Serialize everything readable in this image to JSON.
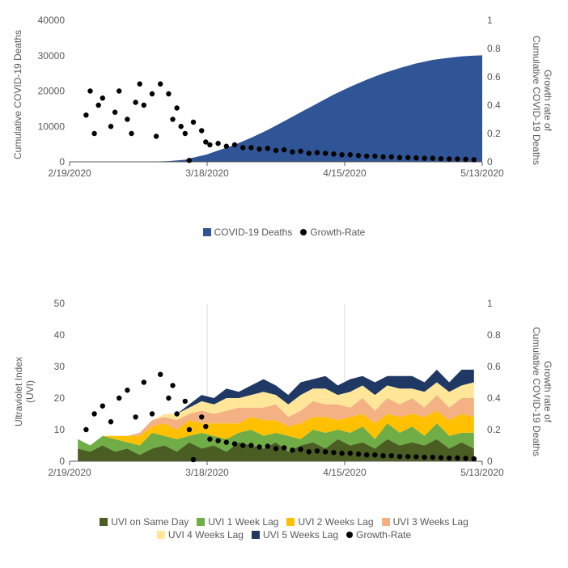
{
  "chart_top": {
    "type": "area+scatter",
    "x_dates": [
      "2/19/2020",
      "3/18/2020",
      "4/15/2020",
      "5/13/2020"
    ],
    "y1_label": "Cumulative COVID-19 Deaths",
    "y2_label": "Growth rate of\nCumulative COVID-19 Deaths",
    "y1_lim": [
      0,
      40000
    ],
    "y1_ticks": [
      0,
      10000,
      20000,
      30000,
      40000
    ],
    "y2_lim": [
      0,
      1.0
    ],
    "y2_ticks": [
      0,
      0.2,
      0.4,
      0.6,
      0.8,
      1.0
    ],
    "area_color": "#2f5597",
    "scatter_color": "#000000",
    "background": "#ffffff",
    "area_series": {
      "label": "COVID-19 Deaths",
      "x": [
        0,
        0.08,
        0.12,
        0.16,
        0.2,
        0.24,
        0.28,
        0.3,
        0.33,
        0.36,
        0.4,
        0.44,
        0.48,
        0.52,
        0.56,
        0.6,
        0.64,
        0.68,
        0.72,
        0.76,
        0.8,
        0.84,
        0.88,
        0.92,
        0.95,
        0.98,
        1.0
      ],
      "y": [
        0,
        0,
        0,
        0,
        50,
        200,
        600,
        1200,
        2000,
        3200,
        4800,
        6800,
        9000,
        11500,
        14000,
        16500,
        19000,
        21200,
        23200,
        25000,
        26500,
        27800,
        28800,
        29400,
        29800,
        30000,
        30100
      ]
    },
    "scatter_series": {
      "label": "Growth-Rate",
      "x": [
        0.04,
        0.05,
        0.06,
        0.07,
        0.08,
        0.1,
        0.11,
        0.12,
        0.14,
        0.15,
        0.16,
        0.17,
        0.18,
        0.2,
        0.21,
        0.22,
        0.24,
        0.25,
        0.26,
        0.27,
        0.28,
        0.29,
        0.3,
        0.32,
        0.33,
        0.34,
        0.36,
        0.38,
        0.4,
        0.42,
        0.44,
        0.46,
        0.48,
        0.5,
        0.52,
        0.54,
        0.56,
        0.58,
        0.6,
        0.62,
        0.64,
        0.66,
        0.68,
        0.7,
        0.72,
        0.74,
        0.76,
        0.78,
        0.8,
        0.82,
        0.84,
        0.86,
        0.88,
        0.9,
        0.92,
        0.94,
        0.96,
        0.98
      ],
      "y": [
        0.33,
        0.5,
        0.2,
        0.4,
        0.45,
        0.25,
        0.35,
        0.5,
        0.3,
        0.2,
        0.42,
        0.55,
        0.4,
        0.48,
        0.18,
        0.55,
        0.48,
        0.3,
        0.38,
        0.25,
        0.2,
        0.01,
        0.28,
        0.22,
        0.14,
        0.12,
        0.13,
        0.11,
        0.12,
        0.1,
        0.1,
        0.09,
        0.095,
        0.08,
        0.085,
        0.07,
        0.075,
        0.06,
        0.065,
        0.06,
        0.055,
        0.05,
        0.05,
        0.045,
        0.04,
        0.04,
        0.035,
        0.035,
        0.03,
        0.03,
        0.028,
        0.025,
        0.025,
        0.022,
        0.02,
        0.02,
        0.018,
        0.015
      ]
    },
    "legend": [
      {
        "type": "area",
        "label": "COVID-19 Deaths",
        "color": "#2f5597"
      },
      {
        "type": "dot",
        "label": "Growth-Rate",
        "color": "#000000"
      }
    ]
  },
  "chart_bot": {
    "type": "stacked-area+scatter",
    "x_dates": [
      "2/19/2020",
      "3/18/2020",
      "4/15/2020",
      "5/13/2020"
    ],
    "y1_label": "Ultraviolet Index\n(UVI)",
    "y2_label": "Growth rate of\nCumulative COVID-19 Deaths",
    "y1_lim": [
      0,
      50
    ],
    "y1_ticks": [
      0,
      10,
      20,
      30,
      40,
      50
    ],
    "y2_lim": [
      0,
      1.0
    ],
    "y2_ticks": [
      0,
      0.2,
      0.4,
      0.6,
      0.8,
      1.0
    ],
    "background": "#ffffff",
    "gridline_color": "#d9d9d9",
    "series_colors": {
      "same_day": "#4a5d23",
      "lag1": "#70ad47",
      "lag2": "#ffc000",
      "lag3": "#f4b183",
      "lag4": "#ffe699",
      "lag5": "#1f3864"
    },
    "scatter_color": "#000000",
    "x": [
      0.02,
      0.05,
      0.08,
      0.11,
      0.14,
      0.17,
      0.2,
      0.23,
      0.26,
      0.29,
      0.32,
      0.35,
      0.38,
      0.41,
      0.44,
      0.47,
      0.5,
      0.53,
      0.56,
      0.59,
      0.62,
      0.65,
      0.68,
      0.71,
      0.74,
      0.77,
      0.8,
      0.83,
      0.86,
      0.89,
      0.92,
      0.95,
      0.98
    ],
    "stacks": {
      "same_day": [
        4,
        3,
        5,
        3,
        4,
        2,
        4,
        5,
        3,
        6,
        4,
        5,
        3,
        6,
        5,
        4,
        6,
        3,
        5,
        6,
        4,
        7,
        5,
        6,
        4,
        7,
        5,
        6,
        5,
        7,
        4,
        6,
        4
      ],
      "lag1": [
        3,
        2,
        3,
        4,
        2,
        3,
        5,
        3,
        4,
        2,
        5,
        3,
        4,
        3,
        5,
        4,
        3,
        5,
        2,
        4,
        5,
        3,
        4,
        5,
        3,
        5,
        4,
        5,
        3,
        5,
        4,
        3,
        5
      ],
      "lag2": [
        0,
        0,
        0,
        1,
        2,
        3,
        2,
        4,
        3,
        5,
        3,
        4,
        5,
        3,
        4,
        5,
        4,
        3,
        5,
        4,
        5,
        3,
        5,
        4,
        5,
        3,
        5,
        4,
        6,
        4,
        5,
        6,
        5
      ],
      "lag3": [
        0,
        0,
        0,
        0,
        0,
        1,
        2,
        2,
        3,
        2,
        4,
        3,
        4,
        5,
        3,
        4,
        5,
        3,
        4,
        5,
        4,
        5,
        3,
        5,
        4,
        5,
        4,
        5,
        3,
        5,
        4,
        5,
        6
      ],
      "lag4": [
        0,
        0,
        0,
        0,
        0,
        0,
        0,
        1,
        2,
        2,
        3,
        3,
        4,
        3,
        4,
        5,
        3,
        4,
        5,
        4,
        5,
        3,
        5,
        4,
        5,
        4,
        5,
        3,
        5,
        4,
        5,
        4,
        5
      ],
      "lag5": [
        0,
        0,
        0,
        0,
        0,
        0,
        0,
        0,
        0,
        1,
        2,
        2,
        3,
        2,
        3,
        4,
        3,
        3,
        4,
        3,
        4,
        3,
        4,
        3,
        4,
        3,
        4,
        4,
        3,
        4,
        3,
        5,
        4
      ]
    },
    "scatter_series": {
      "label": "Growth-Rate",
      "x": [
        0.04,
        0.06,
        0.08,
        0.1,
        0.12,
        0.14,
        0.16,
        0.18,
        0.2,
        0.22,
        0.24,
        0.25,
        0.26,
        0.28,
        0.29,
        0.3,
        0.32,
        0.33,
        0.34,
        0.36,
        0.38,
        0.4,
        0.42,
        0.44,
        0.46,
        0.48,
        0.5,
        0.52,
        0.54,
        0.56,
        0.58,
        0.6,
        0.62,
        0.64,
        0.66,
        0.68,
        0.7,
        0.72,
        0.74,
        0.76,
        0.78,
        0.8,
        0.82,
        0.84,
        0.86,
        0.88,
        0.9,
        0.92,
        0.94,
        0.96,
        0.98
      ],
      "y": [
        0.2,
        0.3,
        0.35,
        0.25,
        0.4,
        0.45,
        0.28,
        0.5,
        0.3,
        0.55,
        0.4,
        0.48,
        0.3,
        0.38,
        0.2,
        0.01,
        0.28,
        0.22,
        0.14,
        0.13,
        0.12,
        0.11,
        0.1,
        0.1,
        0.09,
        0.095,
        0.08,
        0.085,
        0.07,
        0.075,
        0.06,
        0.065,
        0.06,
        0.055,
        0.05,
        0.05,
        0.045,
        0.04,
        0.04,
        0.035,
        0.035,
        0.03,
        0.03,
        0.028,
        0.025,
        0.025,
        0.022,
        0.02,
        0.02,
        0.018,
        0.015
      ]
    },
    "legend": [
      {
        "type": "area",
        "label": "UVI on Same Day",
        "color": "#4a5d23"
      },
      {
        "type": "area",
        "label": "UVI 1 Week Lag",
        "color": "#70ad47"
      },
      {
        "type": "area",
        "label": "UVI 2 Weeks Lag",
        "color": "#ffc000"
      },
      {
        "type": "area",
        "label": "UVI 3 Weeks Lag",
        "color": "#f4b183"
      },
      {
        "type": "area",
        "label": "UVI 4 Weeks Lag",
        "color": "#ffe699"
      },
      {
        "type": "area",
        "label": "UVI 5 Weeks Lag",
        "color": "#1f3864"
      },
      {
        "type": "dot",
        "label": "Growth-Rate",
        "color": "#000000"
      }
    ]
  }
}
